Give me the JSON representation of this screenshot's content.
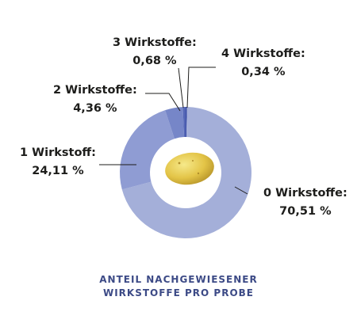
{
  "chart_data": {
    "type": "pie",
    "donut": true,
    "title": "ANTEIL NACHGEWIESENER WIRKSTOFFE PRO PROBE",
    "slices": [
      {
        "name": "0 Wirkstoffe",
        "value": 70.51,
        "value_label": "70,51 %",
        "color": "#a4afd9"
      },
      {
        "name": "1 Wirkstoff",
        "value": 24.11,
        "value_label": "24,11 %",
        "color": "#8f9cd3"
      },
      {
        "name": "2 Wirkstoffe",
        "value": 4.36,
        "value_label": "4,36 %",
        "color": "#7686c8"
      },
      {
        "name": "3 Wirkstoffe",
        "value": 0.68,
        "value_label": "0,68 %",
        "color": "#5466b6"
      },
      {
        "name": "4 Wirkstoffe",
        "value": 0.34,
        "value_label": "0,34 %",
        "color": "#3b4ea6"
      }
    ],
    "center_image": "potato"
  },
  "caption": {
    "line1": "ANTEIL NACHGEWIESENER",
    "line2": "WIRKSTOFFE PRO PROBE"
  }
}
